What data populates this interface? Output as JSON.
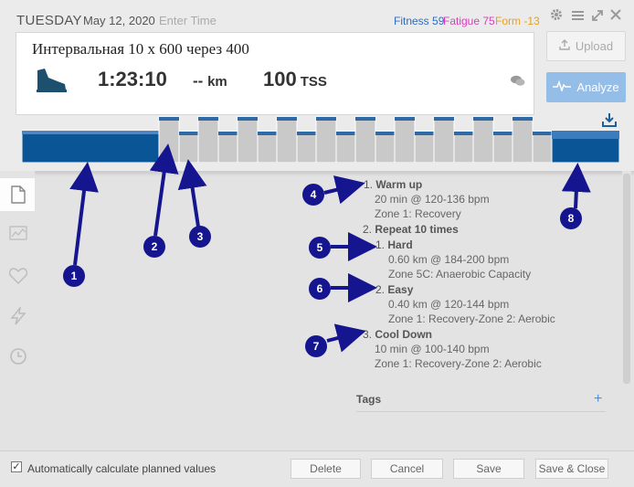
{
  "header": {
    "day": "TUESDAY",
    "date": "May 12, 2020",
    "time_placeholder": "Enter Time",
    "fitness_label": "Fitness",
    "fitness_value": "59",
    "fatigue_label": "Fatigue",
    "fatigue_value": "75",
    "form_label": "Form",
    "form_value": "-13"
  },
  "workout": {
    "title": "Интервальная 10 х 600 через 400",
    "duration": "1:23:10",
    "distance_value": "--",
    "distance_unit": "km",
    "tss_value": "100",
    "tss_unit": "TSS"
  },
  "buttons": {
    "upload": "Upload",
    "analyze": "Analyze",
    "delete": "Delete",
    "cancel": "Cancel",
    "save": "Save",
    "save_close": "Save & Close"
  },
  "structure": {
    "s1_num": "1.",
    "s1_title": "Warm up",
    "s1_detail": "20 min @ 120-136 bpm",
    "s1_zone": "Zone 1: Recovery",
    "s2_num": "2.",
    "s2_title": "Repeat 10 times",
    "s2a_num": "1.",
    "s2a_title": "Hard",
    "s2a_detail": "0.60 km @ 184-200 bpm",
    "s2a_zone": "Zone 5C: Anaerobic Capacity",
    "s2b_num": "2.",
    "s2b_title": "Easy",
    "s2b_detail": "0.40 km @ 120-144 bpm",
    "s2b_zone": "Zone 1: Recovery-Zone 2: Aerobic",
    "s3_num": "3.",
    "s3_title": "Cool Down",
    "s3_detail": "10 min @ 100-140 bpm",
    "s3_zone": "Zone 1: Recovery-Zone 2: Aerobic"
  },
  "tags": {
    "label": "Tags",
    "add": "+"
  },
  "footer": {
    "auto_calc_label": "Automatically calculate planned values",
    "auto_calc_checked": true
  },
  "annotations": [
    "1",
    "2",
    "3",
    "4",
    "5",
    "6",
    "7",
    "8"
  ],
  "colors": {
    "accent": "#0a5596",
    "analyze": "#94bde8",
    "fitness": "#2b6cc4",
    "fatigue": "#d63fbd",
    "form": "#e6a020",
    "marker": "#151590"
  },
  "chart_data": {
    "type": "bar",
    "segments": [
      {
        "name": "warmup",
        "intensity": "low",
        "repeat": 1
      },
      {
        "name": "hard",
        "intensity": "high",
        "repeat": 10
      },
      {
        "name": "easy",
        "intensity": "mid",
        "repeat": 10
      },
      {
        "name": "cooldown",
        "intensity": "low-mid",
        "repeat": 1
      }
    ]
  }
}
